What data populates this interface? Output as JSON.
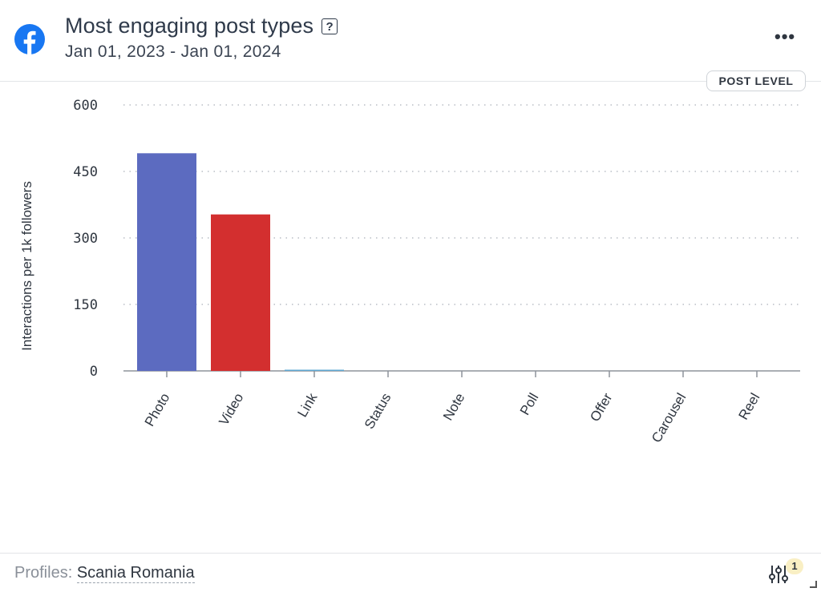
{
  "header": {
    "title": "Most engaging post types",
    "help_glyph": "?",
    "date_range": "Jan 01, 2023 - Jan 01, 2024",
    "menu_glyph": "•••",
    "post_level_label": "POST LEVEL"
  },
  "footer": {
    "profiles_label": "Profiles:",
    "profile_name": "Scania Romania",
    "filter_count": "1"
  },
  "colors": {
    "facebook": "#1877f2",
    "photo": "#5c6bc0",
    "video": "#d32f2f",
    "link": "#5fa8d3"
  },
  "icons": {
    "logo": "facebook-icon",
    "menu": "more-dots-icon",
    "filter": "sliders-icon",
    "help": "help-icon"
  },
  "chart_data": {
    "type": "bar",
    "title": "",
    "xlabel": "",
    "ylabel": "Interactions per 1k followers",
    "ylim": [
      0,
      600
    ],
    "yticks": [
      0,
      150,
      300,
      450,
      600
    ],
    "grid": true,
    "categories": [
      "Photo",
      "Video",
      "Link",
      "Status",
      "Note",
      "Poll",
      "Offer",
      "Carousel",
      "Reel"
    ],
    "values": [
      491,
      353,
      2,
      0,
      0,
      0,
      0,
      0,
      0
    ],
    "bar_colors": [
      "#5c6bc0",
      "#d32f2f",
      "#5fa8d3",
      "#5c6bc0",
      "#5c6bc0",
      "#5c6bc0",
      "#5c6bc0",
      "#5c6bc0",
      "#5c6bc0"
    ]
  }
}
